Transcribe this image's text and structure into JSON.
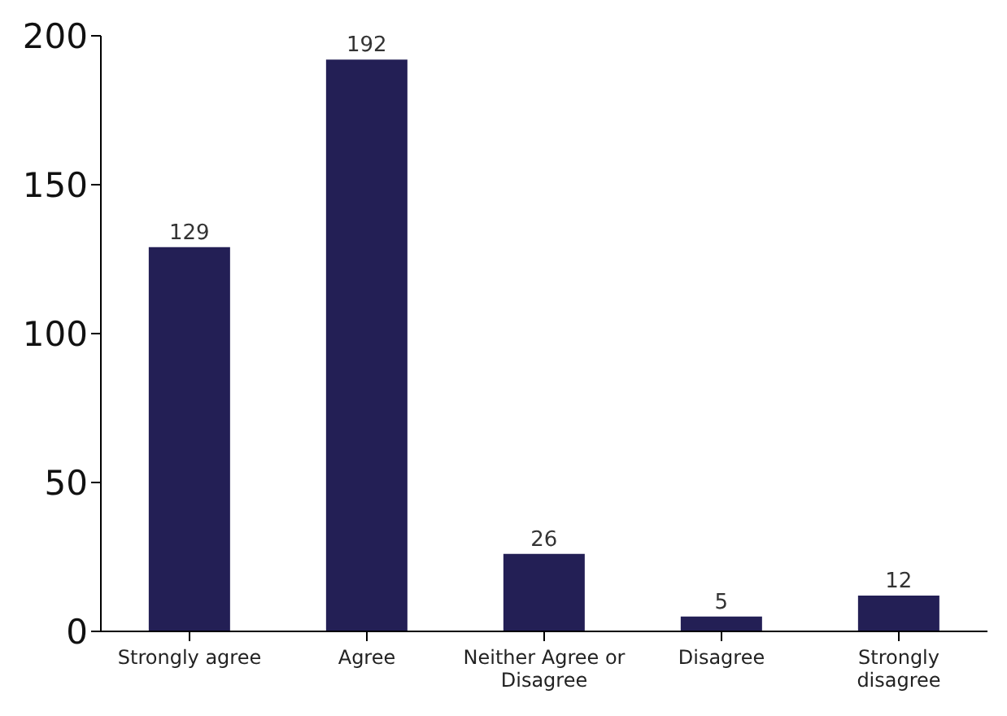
{
  "chart_data": {
    "type": "bar",
    "categories": [
      "Strongly agree",
      "Agree",
      "Neither Agree or Disagree",
      "Disagree",
      "Strongly disagree"
    ],
    "values": [
      129,
      192,
      26,
      5,
      12
    ],
    "color": "#231f55",
    "ylim": [
      0,
      200
    ],
    "yticks": [
      0,
      50,
      100,
      150,
      200
    ],
    "grid": false,
    "data_labels": true
  }
}
